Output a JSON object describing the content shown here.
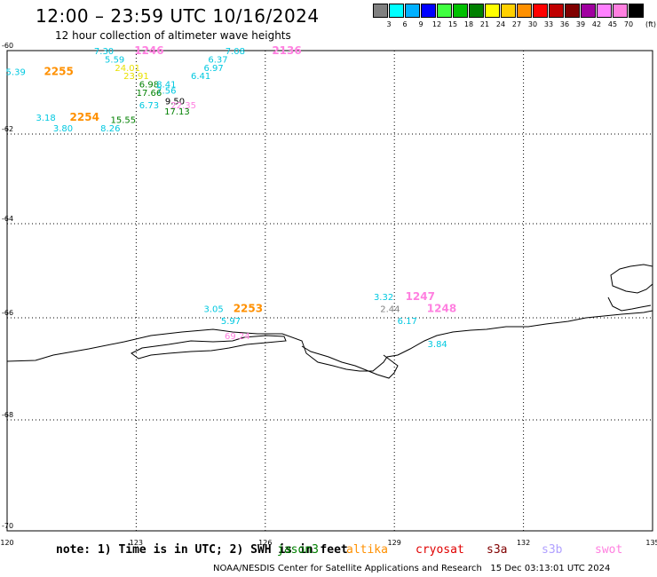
{
  "header": {
    "title": "12:00 – 23:59 UTC 10/16/2024",
    "subtitle": "12 hour collection of altimeter wave heights"
  },
  "colorbar": {
    "unit": "(ft)",
    "colors": [
      "#808080",
      "#00ffff",
      "#00b0ff",
      "#0000ff",
      "#40ff40",
      "#00c000",
      "#008000",
      "#ffff00",
      "#ffd000",
      "#ff9000",
      "#ff0000",
      "#c00000",
      "#800000",
      "#a000a0",
      "#ff80ff",
      "#ff80e0",
      "#000000"
    ],
    "labels": [
      "3",
      "6",
      "9",
      "12",
      "15",
      "18",
      "21",
      "24",
      "27",
      "30",
      "33",
      "36",
      "39",
      "42",
      "45",
      "70"
    ]
  },
  "map": {
    "lon_ticks": [
      "120",
      "123",
      "126",
      "129",
      "132",
      "135"
    ],
    "lat_ticks": [
      "-60",
      "-62",
      "-64",
      "-66",
      "-68",
      "-70"
    ],
    "labels": [
      {
        "t": "7.30",
        "lon": 122.25,
        "lat": -60.0,
        "c": "#00c8e0"
      },
      {
        "t": "1246",
        "lon": 123.3,
        "lat": -60.0,
        "c": "#ff80e0",
        "bold": true
      },
      {
        "t": "7.08",
        "lon": 125.3,
        "lat": -60.0,
        "c": "#00c8e0"
      },
      {
        "t": "2136",
        "lon": 126.5,
        "lat": -60.0,
        "c": "#ff80e0",
        "bold": true
      },
      {
        "t": "5.59",
        "lon": 122.5,
        "lat": -60.2,
        "c": "#00c8e0"
      },
      {
        "t": "6.37",
        "lon": 124.9,
        "lat": -60.2,
        "c": "#00c8e0"
      },
      {
        "t": "24.01",
        "lon": 122.8,
        "lat": -60.4,
        "c": "#e8e000"
      },
      {
        "t": "6.97",
        "lon": 124.8,
        "lat": -60.4,
        "c": "#00c8e0"
      },
      {
        "t": "5.39",
        "lon": 120.2,
        "lat": -60.5,
        "c": "#00c8e0"
      },
      {
        "t": "2255",
        "lon": 121.2,
        "lat": -60.5,
        "c": "#ff9000",
        "bold": true
      },
      {
        "t": "23.91",
        "lon": 123.0,
        "lat": -60.6,
        "c": "#e8e000"
      },
      {
        "t": "6.41",
        "lon": 124.5,
        "lat": -60.6,
        "c": "#00c8e0"
      },
      {
        "t": "6.98",
        "lon": 123.3,
        "lat": -60.8,
        "c": "#008000"
      },
      {
        "t": "8.41",
        "lon": 123.7,
        "lat": -60.8,
        "c": "#00c8e0"
      },
      {
        "t": "7.56",
        "lon": 123.7,
        "lat": -60.95,
        "c": "#00c8e0"
      },
      {
        "t": "17.66",
        "lon": 123.3,
        "lat": -61.0,
        "c": "#008000"
      },
      {
        "t": "9.50",
        "lon": 123.9,
        "lat": -61.2,
        "c": "#000000"
      },
      {
        "t": "6.73",
        "lon": 123.3,
        "lat": -61.3,
        "c": "#00c8e0"
      },
      {
        "t": "22.35",
        "lon": 124.1,
        "lat": -61.3,
        "c": "#ff80e0"
      },
      {
        "t": "17.13",
        "lon": 123.95,
        "lat": -61.45,
        "c": "#008000"
      },
      {
        "t": "3.18",
        "lon": 120.9,
        "lat": -61.6,
        "c": "#00c8e0"
      },
      {
        "t": "2254",
        "lon": 121.8,
        "lat": -61.6,
        "c": "#ff9000",
        "bold": true
      },
      {
        "t": "15.55",
        "lon": 122.7,
        "lat": -61.65,
        "c": "#008000"
      },
      {
        "t": "3.80",
        "lon": 121.3,
        "lat": -61.85,
        "c": "#00c8e0"
      },
      {
        "t": "8.26",
        "lon": 122.4,
        "lat": -61.85,
        "c": "#00c8e0"
      },
      {
        "t": "3.05",
        "lon": 124.8,
        "lat": -65.8,
        "c": "#00c8e0"
      },
      {
        "t": "2253",
        "lon": 125.6,
        "lat": -65.8,
        "c": "#ff9000",
        "bold": true
      },
      {
        "t": "5.97",
        "lon": 125.2,
        "lat": -66.05,
        "c": "#00c8e0"
      },
      {
        "t": "69.24",
        "lon": 125.35,
        "lat": -66.35,
        "c": "#ff80e0"
      },
      {
        "t": "3.32",
        "lon": 128.75,
        "lat": -65.55,
        "c": "#00c8e0"
      },
      {
        "t": "1247",
        "lon": 129.6,
        "lat": -65.55,
        "c": "#ff80e0",
        "bold": true
      },
      {
        "t": "2.44",
        "lon": 128.9,
        "lat": -65.8,
        "c": "#808080"
      },
      {
        "t": "1248",
        "lon": 130.1,
        "lat": -65.8,
        "c": "#ff80e0",
        "bold": true
      },
      {
        "t": "6.17",
        "lon": 129.3,
        "lat": -66.05,
        "c": "#00c8e0"
      },
      {
        "t": "3.84",
        "lon": 130.0,
        "lat": -66.5,
        "c": "#00c8e0"
      }
    ]
  },
  "note": {
    "text": "note: 1) Time is in UTC; 2) SWH is in feet"
  },
  "satellites": [
    {
      "name": "jason3",
      "color": "#008000"
    },
    {
      "name": "altika",
      "color": "#ff9000"
    },
    {
      "name": "cryosat",
      "color": "#e00000"
    },
    {
      "name": "s3a",
      "color": "#800000"
    },
    {
      "name": "s3b",
      "color": "#b0a0ff"
    },
    {
      "name": "swot",
      "color": "#ff80e0"
    }
  ],
  "footer": "NOAA/NESDIS Center for Satellite Applications and Research   15 Dec 03:13:01 UTC 2024"
}
